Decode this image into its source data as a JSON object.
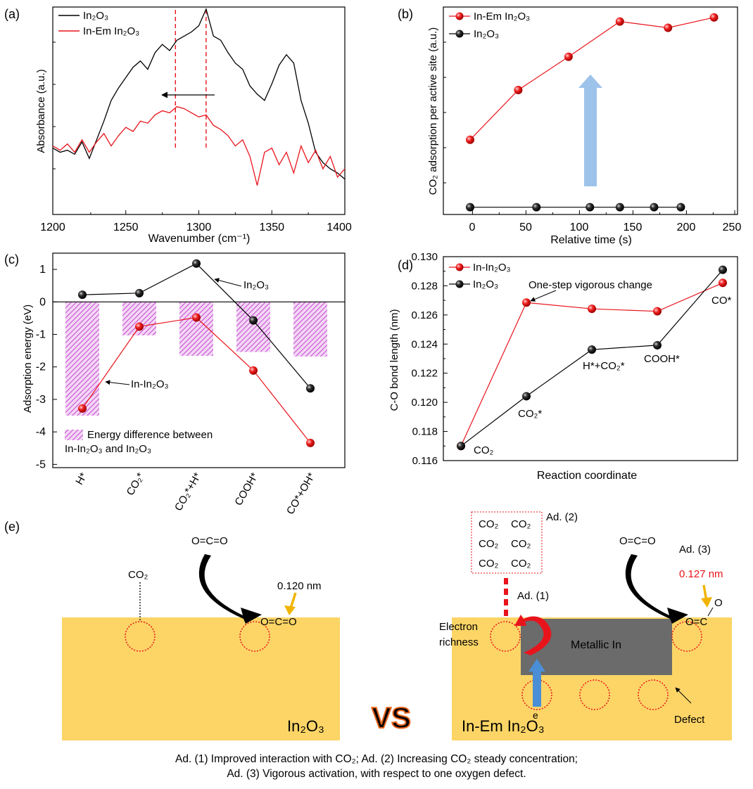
{
  "chart_data": [
    {
      "panel": "(a)",
      "type": "line",
      "xlabel": "Wavenumber (cm⁻¹)",
      "ylabel": "Absorbance (a.u.)",
      "xlim": [
        1200,
        1400
      ],
      "ylim": [
        0,
        1
      ],
      "xticks": [
        1200,
        1250,
        1300,
        1350,
        1400
      ],
      "legend": "top-left",
      "dashed_lines_x": [
        1284,
        1305
      ],
      "series": [
        {
          "name": "In₂O₃",
          "color": "#000000",
          "x": [
            1200,
            1205,
            1210,
            1215,
            1220,
            1225,
            1230,
            1235,
            1240,
            1245,
            1250,
            1255,
            1260,
            1265,
            1270,
            1275,
            1280,
            1285,
            1290,
            1295,
            1300,
            1305,
            1310,
            1315,
            1320,
            1325,
            1330,
            1335,
            1340,
            1345,
            1350,
            1355,
            1360,
            1365,
            1370,
            1375,
            1380,
            1385,
            1390,
            1395,
            1400
          ],
          "y": [
            0.32,
            0.3,
            0.31,
            0.29,
            0.35,
            0.27,
            0.36,
            0.45,
            0.55,
            0.61,
            0.66,
            0.71,
            0.74,
            0.7,
            0.78,
            0.82,
            0.79,
            0.84,
            0.86,
            0.88,
            0.91,
            0.99,
            0.86,
            0.84,
            0.78,
            0.73,
            0.7,
            0.62,
            0.58,
            0.55,
            0.63,
            0.72,
            0.77,
            0.73,
            0.55,
            0.44,
            0.3,
            0.25,
            0.22,
            0.2,
            0.17
          ]
        },
        {
          "name": "In-Em In₂O₃",
          "color": "#e8141c",
          "x": [
            1200,
            1205,
            1210,
            1215,
            1220,
            1225,
            1230,
            1235,
            1240,
            1245,
            1250,
            1255,
            1260,
            1265,
            1270,
            1275,
            1280,
            1285,
            1290,
            1295,
            1300,
            1305,
            1310,
            1315,
            1320,
            1325,
            1330,
            1335,
            1340,
            1345,
            1350,
            1355,
            1360,
            1365,
            1370,
            1375,
            1380,
            1385,
            1390,
            1395,
            1400
          ],
          "y": [
            0.33,
            0.31,
            0.34,
            0.3,
            0.36,
            0.3,
            0.35,
            0.39,
            0.33,
            0.38,
            0.42,
            0.4,
            0.45,
            0.44,
            0.48,
            0.5,
            0.49,
            0.52,
            0.51,
            0.49,
            0.47,
            0.48,
            0.43,
            0.41,
            0.38,
            0.33,
            0.36,
            0.28,
            0.14,
            0.3,
            0.32,
            0.24,
            0.3,
            0.2,
            0.33,
            0.25,
            0.31,
            0.22,
            0.28,
            0.18,
            0.22
          ]
        }
      ],
      "annotation_arrow": {
        "from_x": 1305,
        "to_x": 1284,
        "direction": "left"
      }
    },
    {
      "panel": "(b)",
      "type": "scatter",
      "xlabel": "Relative time (s)",
      "ylabel": "CO₂ adsorption per active site (a.u.)",
      "xlim": [
        -25,
        250
      ],
      "ylim": [
        0,
        1
      ],
      "xticks": [
        0,
        50,
        100,
        150,
        200,
        250
      ],
      "legend": "top-left",
      "series": [
        {
          "name": "In-Em In₂O₃",
          "color": "#e8141c",
          "x": [
            0,
            45,
            92,
            140,
            185,
            228
          ],
          "y": [
            0.36,
            0.6,
            0.76,
            0.93,
            0.9,
            0.95
          ]
        },
        {
          "name": "In₂O₃",
          "color": "#000000",
          "x": [
            0,
            62,
            112,
            140,
            172,
            197
          ],
          "y": [
            0.035,
            0.035,
            0.035,
            0.035,
            0.035,
            0.035
          ]
        }
      ],
      "annotation": "upward blue arrow"
    },
    {
      "panel": "(c)",
      "type": "bar",
      "xlabel": "",
      "ylabel": "Adsorption energy (eV)",
      "ylim": [
        -5.1,
        1.5
      ],
      "yticks": [
        1,
        0,
        -1,
        -2,
        -3,
        -4,
        -5
      ],
      "categories": [
        "H*",
        "CO₂*",
        "CO₂*+H*",
        "COOH*",
        "CO*+OH*"
      ],
      "bars": {
        "name": "Energy difference between In-In₂O₃ and In₂O₃",
        "color": "#c850d2",
        "values": [
          -3.5,
          -1.03,
          -1.66,
          -1.54,
          -1.68
        ]
      },
      "series": [
        {
          "name": "In₂O₃",
          "color": "#000000",
          "values": [
            0.22,
            0.27,
            1.18,
            -0.57,
            -2.66
          ]
        },
        {
          "name": "In-In₂O₃",
          "color": "#e8141c",
          "values": [
            -3.28,
            -0.76,
            -0.48,
            -2.11,
            -4.34
          ]
        }
      ]
    },
    {
      "panel": "(d)",
      "type": "line",
      "xlabel": "Reaction coordinate",
      "ylabel": "C-O bond length (nm)",
      "ylim": [
        0.116,
        0.13
      ],
      "yticks": [
        0.116,
        0.118,
        0.12,
        0.122,
        0.124,
        0.126,
        0.128,
        0.13
      ],
      "legend": "top-left",
      "categories": [
        "CO₂",
        "CO₂*",
        "H*+CO₂*",
        "COOH*",
        "CO*"
      ],
      "series": [
        {
          "name": "In-In₂O₃",
          "color": "#e8141c",
          "values": [
            0.117,
            0.12685,
            0.12642,
            0.12625,
            0.1282
          ]
        },
        {
          "name": "In₂O₃",
          "color": "#000000",
          "values": [
            0.117,
            0.12042,
            0.12362,
            0.12392,
            0.1291
          ]
        }
      ],
      "annotation": "One-step vigorous change"
    }
  ],
  "labels": {
    "panel_a": "(a)",
    "panel_b": "(b)",
    "panel_c": "(c)",
    "panel_d": "(d)",
    "panel_e": "(e)",
    "a_leg1": "In₂O₃",
    "a_leg2": "In-Em In₂O₃",
    "a_x0": "1200",
    "a_x1": "1250",
    "a_x2": "1300",
    "a_x3": "1350",
    "a_x4": "1400",
    "a_xlabel": "Wavenumber (cm⁻¹)",
    "a_ylabel": "Absorbance (a.u.)",
    "b_leg1": "In-Em In₂O₃",
    "b_leg2": "In₂O₃",
    "b_x0": "0",
    "b_x1": "50",
    "b_x2": "100",
    "b_x3": "150",
    "b_x4": "200",
    "b_x5": "250",
    "b_xlabel": "Relative time (s)",
    "b_ylabel": "CO₂ adsorption per active site (a.u.)",
    "c_y1": "1",
    "c_y0": "0",
    "c_ym1": "-1",
    "c_ym2": "-2",
    "c_ym3": "-3",
    "c_ym4": "-4",
    "c_ym5": "-5",
    "c_ylabel": "Adsorption energy (eV)",
    "c_cat0": "H*",
    "c_cat1": "CO₂*",
    "c_cat2": "CO₂*+H*",
    "c_cat3": "COOH*",
    "c_cat4": "CO*+OH*",
    "c_ann_in2o3": "In₂O₃",
    "c_ann_inin2o3": "In-In₂O₃",
    "c_leg_line1": "Energy difference between",
    "c_leg_line2": "In-In₂O₃ and In₂O₃",
    "d_y0": "0.116",
    "d_y1": "0.118",
    "d_y2": "0.120",
    "d_y3": "0.122",
    "d_y4": "0.124",
    "d_y5": "0.126",
    "d_y6": "0.128",
    "d_y7": "0.130",
    "d_ylabel": "C-O bond length (nm)",
    "d_xlabel": "Reaction coordinate",
    "d_leg1": "In-In₂O₃",
    "d_leg2": "In₂O₃",
    "d_ann": "One-step vigorous change",
    "d_lbl_co2": "CO₂",
    "d_lbl_co2s": "CO₂*",
    "d_lbl_hco2": "H*+CO₂*",
    "d_lbl_cooh": "COOH*",
    "d_lbl_co": "CO*"
  },
  "schematic": {
    "left_co2": "CO₂",
    "left_oco": "O=C=O",
    "left_bond": "0.120 nm",
    "left_bound": "O=C=O",
    "left_label": "In₂O₃",
    "vs": "VS",
    "box_co2": [
      "CO₂",
      "CO₂",
      "CO₂",
      "CO₂",
      "CO₂",
      "CO₂"
    ],
    "ad2": "Ad. (2)",
    "ad1": "Ad. (1)",
    "ad3": "Ad. (3)",
    "right_oco": "O=C=O",
    "right_bond": "0.127 nm",
    "right_o": "O",
    "right_oc": "O=C",
    "electron1": "Electron",
    "electron2": "richness",
    "metallic": "Metallic In",
    "e": "e",
    "defect": "Defect",
    "right_label": "In-Em In₂O₃"
  },
  "captions": {
    "line1": "Ad. (1) Improved interaction with CO₂; Ad. (2) Increasing CO₂ steady concentration;",
    "line2": "Ad. (3) Vigorous activation, with respect to one oxygen defect."
  },
  "colors": {
    "red": "#e8141c",
    "black": "#000000",
    "magenta": "#c850d2",
    "slab": "#fcd566",
    "metal": "#6b6b6b",
    "blue_arrow": "#9ec3ea"
  }
}
